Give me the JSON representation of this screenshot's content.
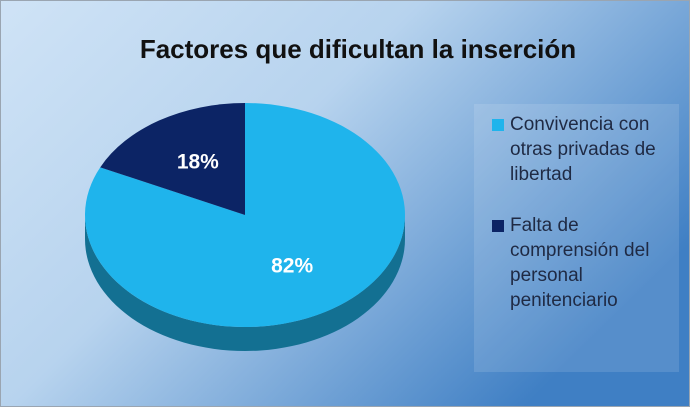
{
  "chart_data": {
    "type": "pie",
    "title": "Factores que dificultan la inserción",
    "categories": [
      "Convivencia con otras privadas de libertad",
      "Falta de comprensión del personal penitenciario"
    ],
    "values": [
      82,
      18
    ],
    "value_labels": [
      "82%",
      "18%"
    ],
    "colors": [
      "#1fb4ec",
      "#0c2465"
    ],
    "legend": "right"
  }
}
